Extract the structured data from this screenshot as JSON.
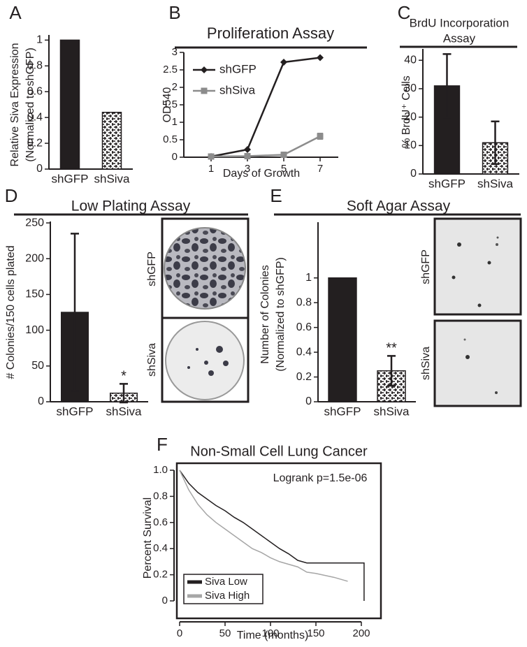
{
  "chart_data": [
    {
      "panel": "A",
      "type": "bar",
      "ylabel": [
        "Relative Siva Expression",
        "(Normalized to shGFP)"
      ],
      "categories": [
        "shGFP",
        "shSiva"
      ],
      "values": [
        1,
        0.44
      ],
      "colors": [
        "#231f20",
        "#231f20"
      ],
      "hatch": [
        false,
        true
      ],
      "ylim": [
        0,
        1.04
      ],
      "yticks": [
        0,
        0.2,
        0.4,
        0.6,
        0.8,
        1
      ]
    },
    {
      "panel": "B",
      "type": "line",
      "title": [
        "Proliferation Assay"
      ],
      "xlabel": "Days of Growth",
      "ylabel": [
        "OD540"
      ],
      "x": [
        1,
        3,
        5,
        7
      ],
      "xlim": [
        -0.5,
        8
      ],
      "xticks": [
        1,
        3,
        5,
        7
      ],
      "ylim": [
        0,
        3
      ],
      "yticks": [
        0,
        0.5,
        1,
        1.5,
        2,
        2.5,
        3
      ],
      "legend": "upper left",
      "series": [
        {
          "name": "shGFP",
          "color": "#231f20",
          "marker": "diamond",
          "values": [
            0.02,
            0.22,
            2.72,
            2.85
          ]
        },
        {
          "name": "shSiva",
          "color": "#8c8c8c",
          "marker": "square",
          "values": [
            0.02,
            0.03,
            0.07,
            0.6
          ],
          "errors": [
            null,
            null,
            null,
            0.08
          ]
        }
      ]
    },
    {
      "panel": "C",
      "type": "bar",
      "title": [
        "BrdU Incorporation",
        "Assay"
      ],
      "ylabel": [
        "% BrdU⁺ Cells"
      ],
      "categories": [
        "shGFP",
        "shSiva"
      ],
      "values": [
        31,
        11
      ],
      "errors": [
        11.2,
        7.5
      ],
      "colors": [
        "#231f20",
        "#231f20"
      ],
      "hatch": [
        false,
        true
      ],
      "ylim": [
        0,
        44
      ],
      "yticks": [
        0,
        10,
        20,
        30,
        40
      ]
    },
    {
      "panel": "D",
      "type": "bar",
      "title": [
        "Low Plating Assay"
      ],
      "ylabel": [
        "# Colonies/150 cells plated"
      ],
      "categories": [
        "shGFP",
        "shSiva"
      ],
      "values": [
        125,
        12
      ],
      "errors": [
        110,
        13
      ],
      "bar_annotations": [
        null,
        "*"
      ],
      "colors": [
        "#231f20",
        "#231f20"
      ],
      "hatch": [
        false,
        true
      ],
      "ylim": [
        0,
        252
      ],
      "yticks": [
        0,
        50,
        100,
        150,
        200,
        250
      ],
      "image_labels": [
        "shGFP",
        "shSiva"
      ]
    },
    {
      "panel": "E",
      "type": "bar",
      "title": [
        "Soft Agar Assay"
      ],
      "ylabel": [
        "Number of Colonies",
        "(Normalized to shGFP)"
      ],
      "categories": [
        "shGFP",
        "shSiva"
      ],
      "values": [
        1,
        0.25
      ],
      "errors": [
        null,
        0.12
      ],
      "bar_annotations": [
        null,
        "**"
      ],
      "colors": [
        "#231f20",
        "#231f20"
      ],
      "hatch": [
        false,
        true
      ],
      "ylim": [
        0,
        1.45
      ],
      "yticks": [
        0,
        0.2,
        0.4,
        0.6,
        0.8,
        1
      ],
      "image_labels": [
        "shGFP",
        "shSiva"
      ]
    },
    {
      "panel": "F",
      "type": "survival",
      "title": [
        "Non-Small Cell Lung Cancer"
      ],
      "annotation": "Logrank p=1.5e-06",
      "xlabel": "Time (months)",
      "ylabel": [
        "Percent Survival"
      ],
      "xlim": [
        0,
        200
      ],
      "xticks": [
        0,
        50,
        100,
        150,
        200
      ],
      "ylim": [
        0,
        1
      ],
      "yticks": [
        0,
        0.2,
        0.4,
        0.6,
        0.8,
        {
          "value": 1,
          "label": "1.0"
        }
      ],
      "legend": "lower left",
      "series": [
        {
          "name": "Siva Low",
          "color": "#231f20",
          "x": [
            0,
            10,
            20,
            30,
            40,
            50,
            60,
            70,
            80,
            90,
            100,
            110,
            120,
            130,
            140,
            160,
            180,
            203,
            203
          ],
          "values": [
            1,
            0.9,
            0.83,
            0.78,
            0.73,
            0.69,
            0.64,
            0.6,
            0.55,
            0.5,
            0.45,
            0.4,
            0.36,
            0.31,
            0.29,
            0.29,
            0.29,
            0.29,
            0
          ]
        },
        {
          "name": "Siva High",
          "color": "#a6a6a6",
          "x": [
            0,
            10,
            20,
            30,
            40,
            50,
            60,
            70,
            80,
            90,
            100,
            110,
            120,
            130,
            140,
            150,
            170,
            185
          ],
          "values": [
            1,
            0.85,
            0.74,
            0.66,
            0.6,
            0.55,
            0.5,
            0.45,
            0.4,
            0.37,
            0.33,
            0.3,
            0.28,
            0.26,
            0.22,
            0.21,
            0.18,
            0.15
          ]
        }
      ]
    }
  ]
}
